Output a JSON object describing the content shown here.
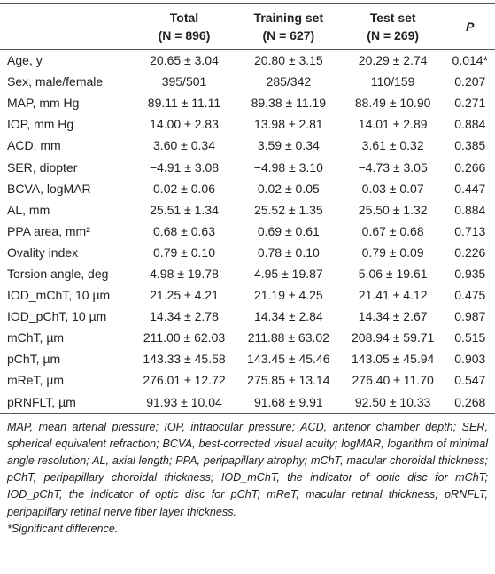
{
  "table": {
    "header": [
      [
        "",
        ""
      ],
      [
        "Total",
        "(N = 896)"
      ],
      [
        "Training set",
        "(N = 627)"
      ],
      [
        "Test set",
        "(N = 269)"
      ],
      [
        "P",
        ""
      ]
    ],
    "rows": [
      [
        "Age, y",
        "20.65 ± 3.04",
        "20.80 ± 3.15",
        "20.29 ± 2.74",
        "0.014*"
      ],
      [
        "Sex, male/female",
        "395/501",
        "285/342",
        "110/159",
        "0.207"
      ],
      [
        "MAP, mm Hg",
        "89.11 ± 11.11",
        "89.38 ± 11.19",
        "88.49 ± 10.90",
        "0.271"
      ],
      [
        "IOP, mm Hg",
        "14.00 ± 2.83",
        "13.98 ± 2.81",
        "14.01 ± 2.89",
        "0.884"
      ],
      [
        "ACD, mm",
        "3.60 ± 0.34",
        "3.59 ± 0.34",
        "3.61 ± 0.32",
        "0.385"
      ],
      [
        "SER, diopter",
        "−4.91 ± 3.08",
        "−4.98 ± 3.10",
        "−4.73 ± 3.05",
        "0.266"
      ],
      [
        "BCVA, logMAR",
        "0.02 ± 0.06",
        "0.02 ± 0.05",
        "0.03 ± 0.07",
        "0.447"
      ],
      [
        "AL, mm",
        "25.51 ± 1.34",
        "25.52 ± 1.35",
        "25.50 ± 1.32",
        "0.884"
      ],
      [
        "PPA area, mm²",
        "0.68 ± 0.63",
        "0.69 ± 0.61",
        "0.67 ± 0.68",
        "0.713"
      ],
      [
        "Ovality index",
        "0.79 ± 0.10",
        "0.78 ± 0.10",
        "0.79 ± 0.09",
        "0.226"
      ],
      [
        "Torsion angle, deg",
        "4.98 ± 19.78",
        "4.95 ± 19.87",
        "5.06 ± 19.61",
        "0.935"
      ],
      [
        "IOD_mChT, 10 µm",
        "21.25 ± 4.21",
        "21.19 ± 4.25",
        "21.41 ± 4.12",
        "0.475"
      ],
      [
        "IOD_pChT, 10 µm",
        "14.34 ± 2.78",
        "14.34 ± 2.84",
        "14.34 ± 2.67",
        "0.987"
      ],
      [
        "mChT, µm",
        "211.00 ± 62.03",
        "211.88 ± 63.02",
        "208.94 ± 59.71",
        "0.515"
      ],
      [
        "pChT, µm",
        "143.33 ± 45.58",
        "143.45 ± 45.46",
        "143.05 ± 45.94",
        "0.903"
      ],
      [
        "mReT, µm",
        "276.01 ± 12.72",
        "275.85 ± 13.14",
        "276.40 ± 11.70",
        "0.547"
      ],
      [
        "pRNFLT, µm",
        "91.93 ± 10.04",
        "91.68 ± 9.91",
        "92.50 ± 10.33",
        "0.268"
      ]
    ]
  },
  "footnote": {
    "abbreviations": "MAP, mean arterial pressure; IOP, intraocular pressure; ACD, anterior chamber depth; SER, spherical equivalent refraction; BCVA, best-corrected visual acuity; logMAR, logarithm of minimal angle resolution; AL, axial length; PPA, peripapillary atrophy; mChT, macular choroidal thickness; pChT, peripapillary choroidal thickness; IOD_mChT, the indicator of optic disc for mChT; IOD_pChT, the indicator of optic disc for pChT; mReT, macular retinal thickness; pRNFLT, peripapillary retinal nerve fiber layer thickness.",
    "significance": "*Significant difference."
  }
}
